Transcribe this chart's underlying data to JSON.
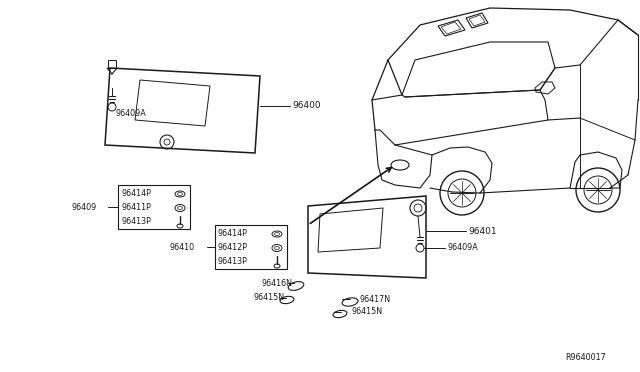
{
  "bg_color": "#ffffff",
  "lc": "#1a1a1a",
  "tc": "#1a1a1a",
  "diagram_label": "R9640017",
  "box1_parts": [
    "96414P",
    "96411P",
    "96413P"
  ],
  "box2_parts": [
    "96414P",
    "96412P",
    "96413P"
  ],
  "fs": 6.5,
  "sfs": 5.8
}
